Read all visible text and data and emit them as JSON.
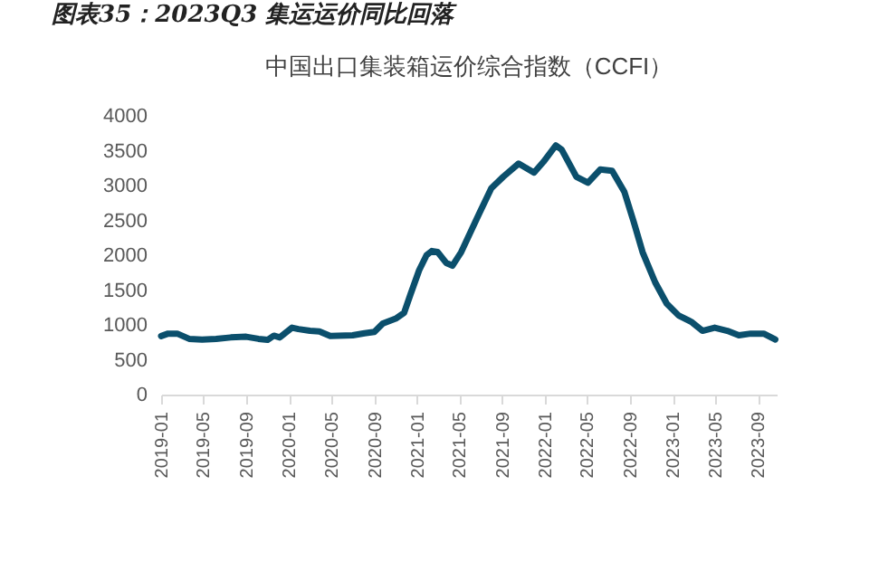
{
  "chart_data": {
    "type": "line",
    "title": "图表35：2023Q3 集运运价同比回落",
    "subtitle": "中国出口集装箱运价综合指数（CCFI）",
    "x": [
      "2019-01-01",
      "2019-01-21",
      "2019-02-16",
      "2019-03-22",
      "2019-04-28",
      "2019-06-07",
      "2019-07-19",
      "2019-09-01",
      "2019-10-06",
      "2019-11-01",
      "2019-11-19",
      "2019-12-06",
      "2020-01-10",
      "2020-01-28",
      "2020-03-01",
      "2020-03-28",
      "2020-04-28",
      "2020-07-01",
      "2020-08-04",
      "2020-09-01",
      "2020-09-25",
      "2020-11-01",
      "2020-11-25",
      "2020-12-13",
      "2021-01-07",
      "2021-01-28",
      "2021-02-12",
      "2021-03-01",
      "2021-03-25",
      "2021-04-12",
      "2021-05-07",
      "2021-06-28",
      "2021-08-01",
      "2021-09-04",
      "2021-10-18",
      "2021-12-01",
      "2021-12-28",
      "2022-02-01",
      "2022-02-18",
      "2022-04-01",
      "2022-05-04",
      "2022-06-08",
      "2022-07-12",
      "2022-08-16",
      "2022-09-12",
      "2022-10-07",
      "2022-11-12",
      "2022-12-15",
      "2023-01-18",
      "2023-02-23",
      "2023-03-27",
      "2023-05-01",
      "2023-06-06",
      "2023-07-09",
      "2023-08-12",
      "2023-09-18",
      "2023-10-21"
    ],
    "series": [
      {
        "color": "#0b4f6c",
        "values": [
          840,
          875,
          875,
          800,
          790,
          800,
          820,
          830,
          800,
          785,
          845,
          820,
          960,
          940,
          915,
          905,
          840,
          850,
          880,
          900,
          1020,
          1090,
          1175,
          1435,
          1785,
          2000,
          2060,
          2045,
          1890,
          1850,
          2045,
          2605,
          2960,
          3125,
          3315,
          3185,
          3340,
          3575,
          3515,
          3125,
          3040,
          3230,
          3210,
          2910,
          2475,
          2045,
          1610,
          1305,
          1135,
          1045,
          915,
          960,
          915,
          850,
          875,
          875,
          790
        ]
      }
    ],
    "xlim": [
      "2019-01-01",
      "2023-10-25"
    ],
    "xticks": [
      "2019-01",
      "2019-05",
      "2019-09",
      "2020-01",
      "2020-05",
      "2020-09",
      "2021-01",
      "2021-05",
      "2021-09",
      "2022-01",
      "2022-05",
      "2022-09",
      "2023-01",
      "2023-05",
      "2023-09"
    ],
    "ylim": [
      0,
      4000
    ],
    "yticks": [
      0,
      500,
      1000,
      1500,
      2000,
      2500,
      3000,
      3500,
      4000
    ],
    "marker": "none",
    "line_style": "solid"
  }
}
